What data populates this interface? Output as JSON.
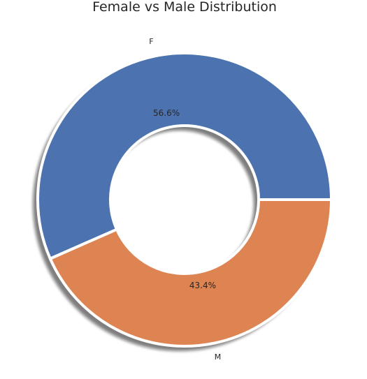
{
  "chart_data": {
    "type": "pie",
    "style": "donut",
    "title": "Female vs Male Distribution",
    "categories": [
      "F",
      "M"
    ],
    "values": [
      56.6,
      43.4
    ],
    "autopct_labels": [
      "56.6%",
      "43.4%"
    ],
    "colors": [
      "#4c72b0",
      "#dd8452"
    ],
    "shadow": true,
    "legend": "none"
  }
}
